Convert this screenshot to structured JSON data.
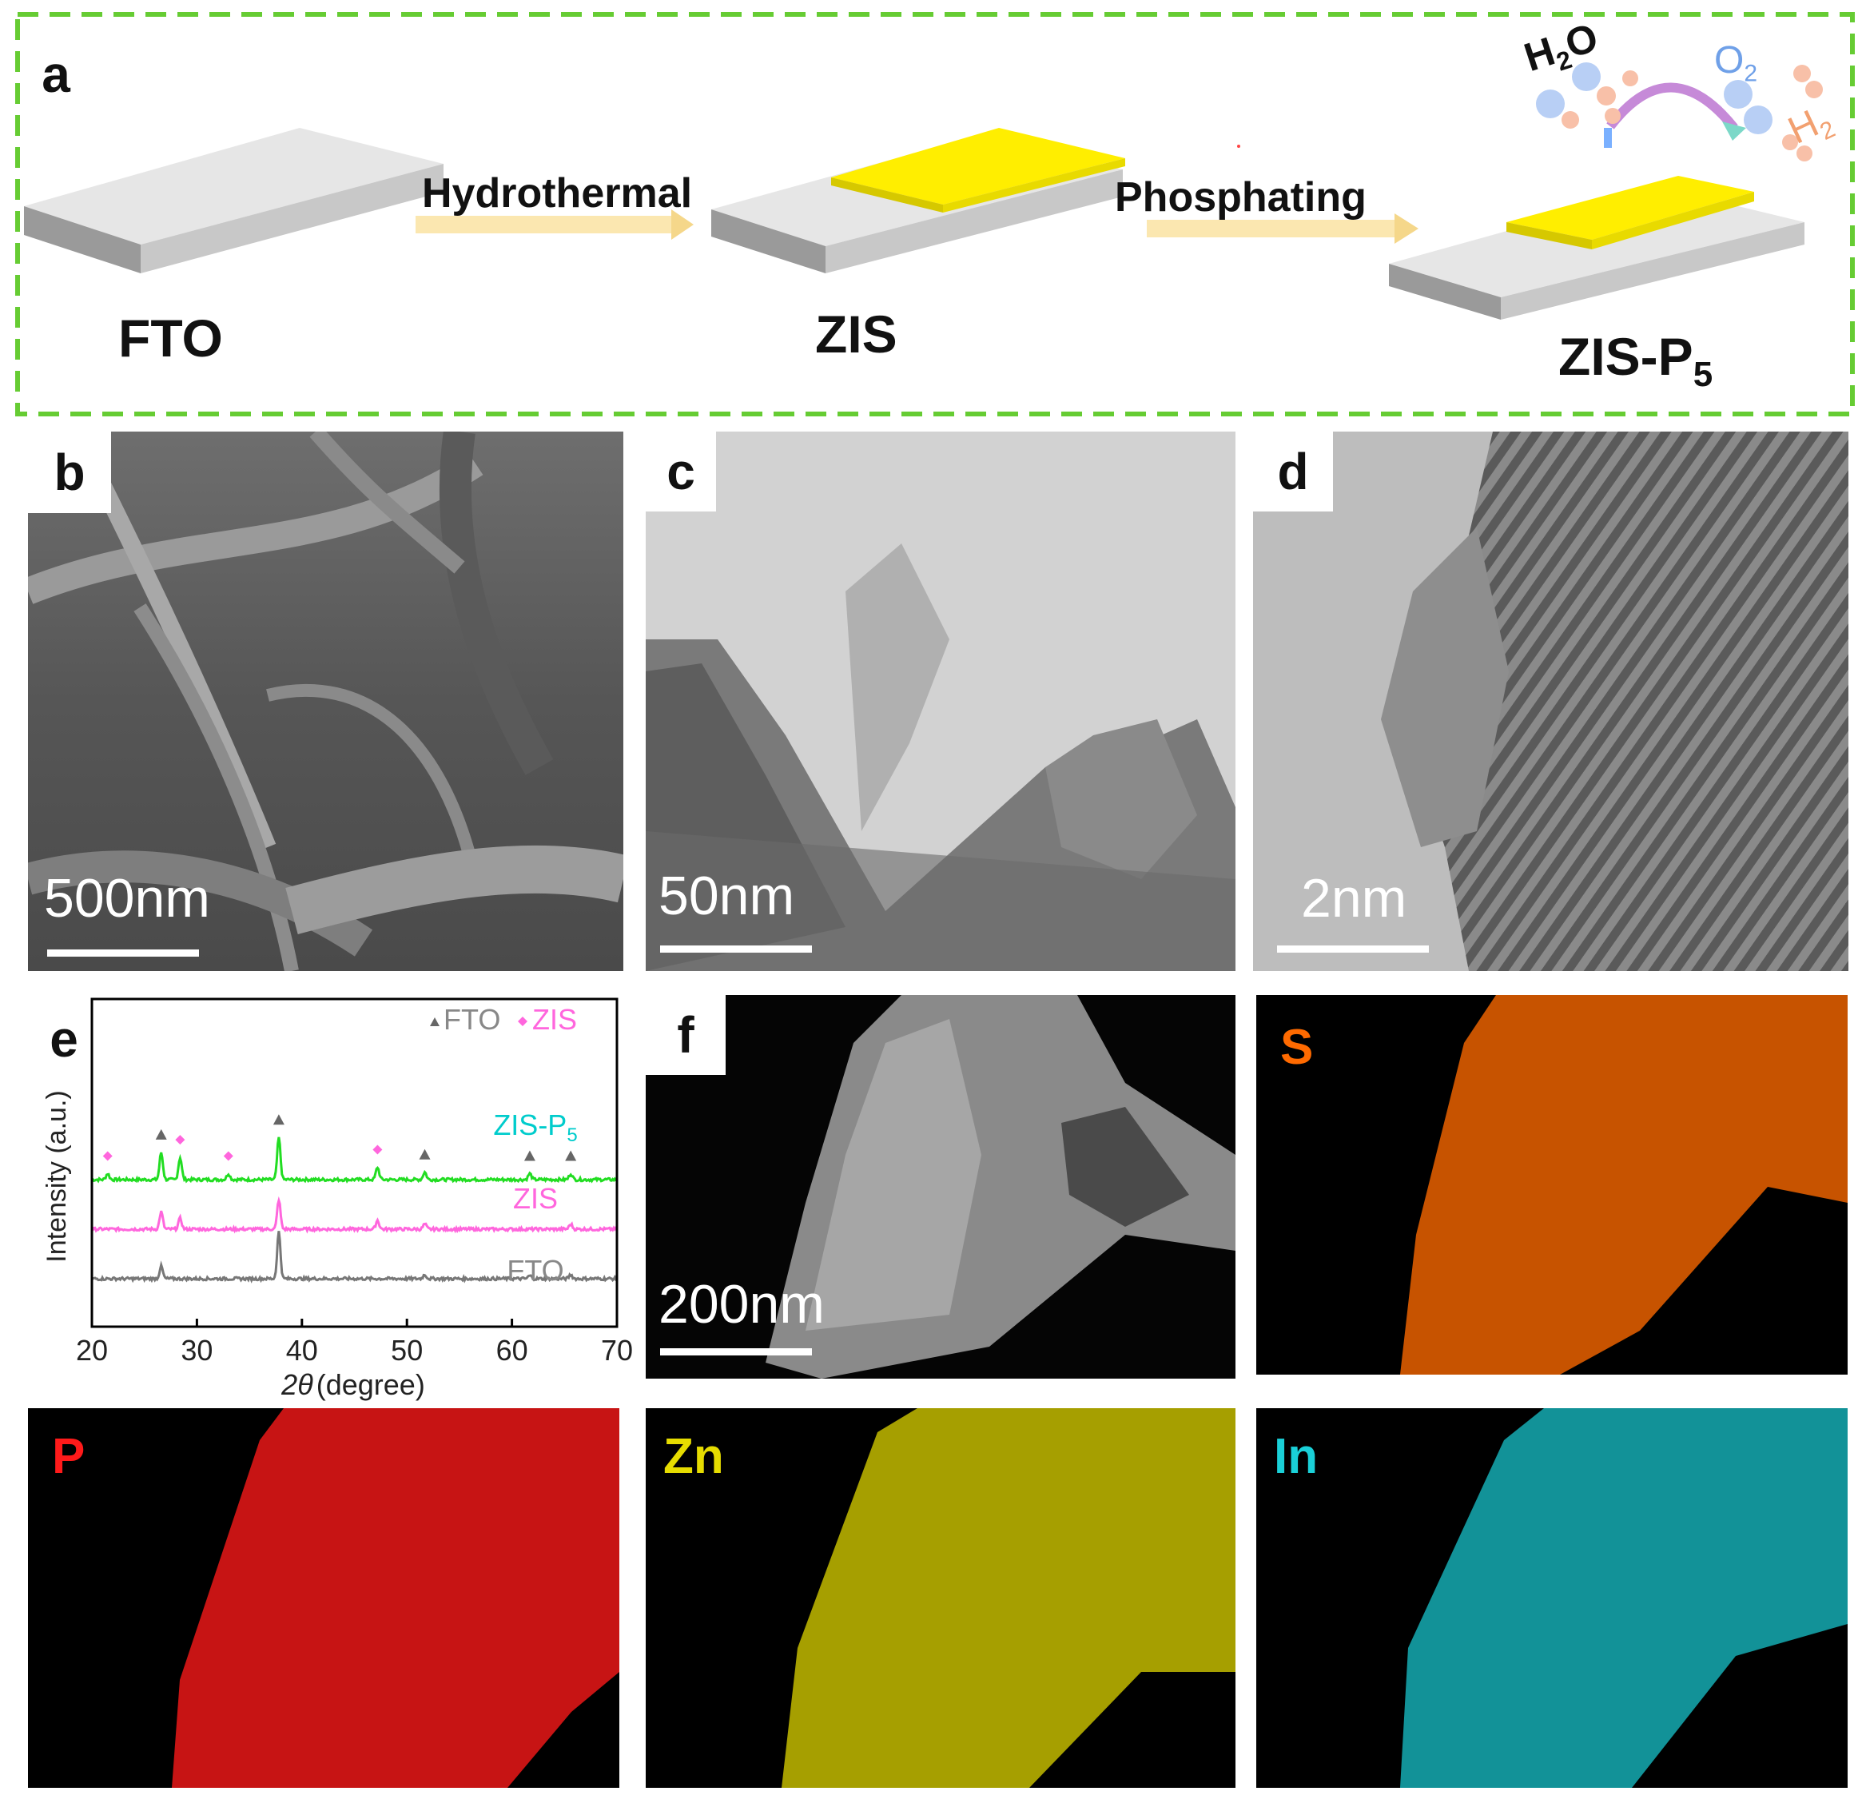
{
  "panel_a": {
    "letter": "a",
    "labels": {
      "fto": "FTO",
      "zis": "ZIS",
      "zisp_base": "ZIS-P",
      "zisp_sub": "5"
    },
    "steps": {
      "hydrothermal": "Hydrothermal",
      "phosphating": "Phosphating"
    },
    "molecules": {
      "h2o_base": "H",
      "h2o_sub": "2",
      "h2o_tail": "O",
      "o2_base": "O",
      "o2_sub": "2",
      "h2_base": "H",
      "h2_sub": "2"
    },
    "colors": {
      "frame": "#66cc33",
      "film": "#ffee00",
      "substrate": "#d9d9d9"
    }
  },
  "panel_b": {
    "letter": "b",
    "scale": "500nm"
  },
  "panel_c": {
    "letter": "c",
    "scale": "50nm"
  },
  "panel_d": {
    "letter": "d",
    "scale": "2nm"
  },
  "panel_e": {
    "letter": "e"
  },
  "panel_f": {
    "letter": "f",
    "scale": "200nm"
  },
  "maps": [
    {
      "element": "S",
      "color": "#ff6a00"
    },
    {
      "element": "P",
      "color": "#ff1a1a"
    },
    {
      "element": "Zn",
      "color": "#e6dc00"
    },
    {
      "element": "In",
      "color": "#1ad0d8"
    }
  ],
  "chart_data": {
    "type": "line",
    "xlabel_symbol": "2θ",
    "xlabel_unit": "(degree)",
    "ylabel": "Intensity (a.u.)",
    "xlim": [
      20,
      70
    ],
    "xticks": [
      "20",
      "30",
      "40",
      "50",
      "60",
      "70"
    ],
    "legend": {
      "fto": "FTO",
      "zis": "ZIS",
      "position": "top-right"
    },
    "series": [
      {
        "name": "ZIS-P",
        "name_sub": "5",
        "color": "#22dd22",
        "label_color": "#00cccc",
        "offset": 2.0,
        "peaks": [
          [
            21.5,
            0.12
          ],
          [
            26.6,
            0.55
          ],
          [
            28.4,
            0.45
          ],
          [
            33.0,
            0.12
          ],
          [
            37.8,
            0.85
          ],
          [
            47.2,
            0.25
          ],
          [
            51.7,
            0.15
          ],
          [
            61.7,
            0.12
          ],
          [
            65.6,
            0.12
          ]
        ]
      },
      {
        "name": "ZIS",
        "color": "#ff66dd",
        "label_color": "#ff66dd",
        "offset": 1.0,
        "peaks": [
          [
            26.6,
            0.35
          ],
          [
            28.4,
            0.22
          ],
          [
            37.8,
            0.6
          ],
          [
            47.2,
            0.18
          ],
          [
            51.7,
            0.1
          ],
          [
            65.6,
            0.1
          ]
        ]
      },
      {
        "name": "FTO",
        "color": "#777777",
        "label_color": "#888888",
        "offset": 0.0,
        "peaks": [
          [
            26.6,
            0.25
          ],
          [
            37.8,
            0.95
          ],
          [
            51.7,
            0.08
          ],
          [
            61.7,
            0.06
          ],
          [
            65.6,
            0.08
          ]
        ]
      }
    ],
    "markers": {
      "fto": [
        26.6,
        37.8,
        51.7,
        61.7,
        65.6
      ],
      "zis": [
        21.5,
        28.4,
        33.0,
        47.2
      ]
    }
  }
}
